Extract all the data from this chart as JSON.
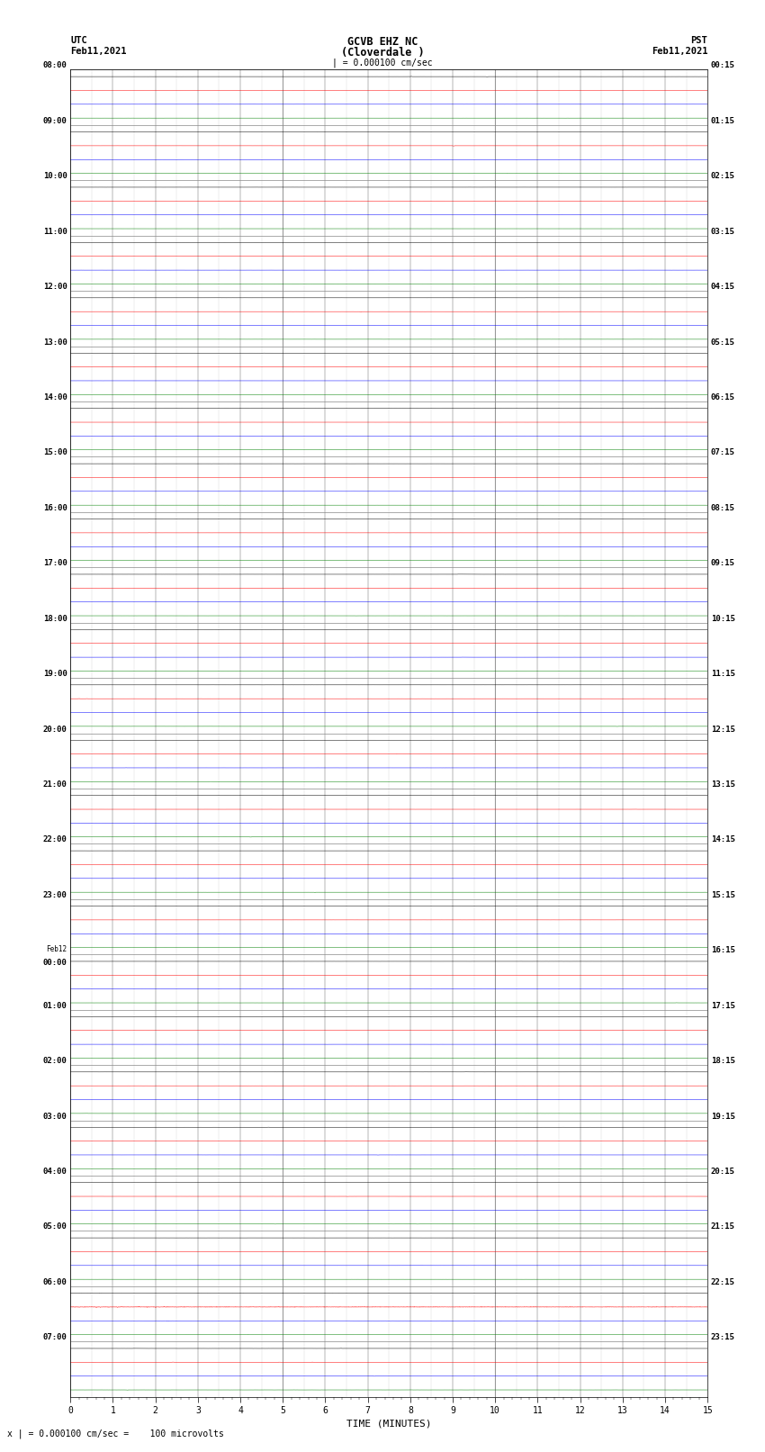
{
  "title_line1": "GCVB EHZ NC",
  "title_line2": "(Cloverdale )",
  "title_scale": "| = 0.000100 cm/sec",
  "left_label_line1": "UTC",
  "left_label_line2": "Feb11,2021",
  "right_label_line1": "PST",
  "right_label_line2": "Feb11,2021",
  "bottom_label": "TIME (MINUTES)",
  "scale_text": "x | = 0.000100 cm/sec =    100 microvolts",
  "colors": [
    "black",
    "red",
    "blue",
    "green"
  ],
  "n_hours": 24,
  "traces_per_hour": 4,
  "x_min": 0,
  "x_max": 15,
  "noise_scale": 0.0018,
  "background_color": "white",
  "grid_color": "#888888",
  "figsize": [
    8.5,
    16.13
  ],
  "dpi": 100,
  "utc_hour_labels": [
    "08:00",
    "09:00",
    "10:00",
    "11:00",
    "12:00",
    "13:00",
    "14:00",
    "15:00",
    "16:00",
    "17:00",
    "18:00",
    "19:00",
    "20:00",
    "21:00",
    "22:00",
    "23:00",
    "Feb12|00:00",
    "01:00",
    "02:00",
    "03:00",
    "04:00",
    "05:00",
    "06:00",
    "07:00"
  ],
  "pst_hour_labels": [
    "00:15",
    "01:15",
    "02:15",
    "03:15",
    "04:15",
    "05:15",
    "06:15",
    "07:15",
    "08:15",
    "09:15",
    "10:15",
    "11:15",
    "12:15",
    "13:15",
    "14:15",
    "15:15",
    "16:15",
    "17:15",
    "18:15",
    "19:15",
    "20:15",
    "21:15",
    "22:15",
    "23:15"
  ]
}
